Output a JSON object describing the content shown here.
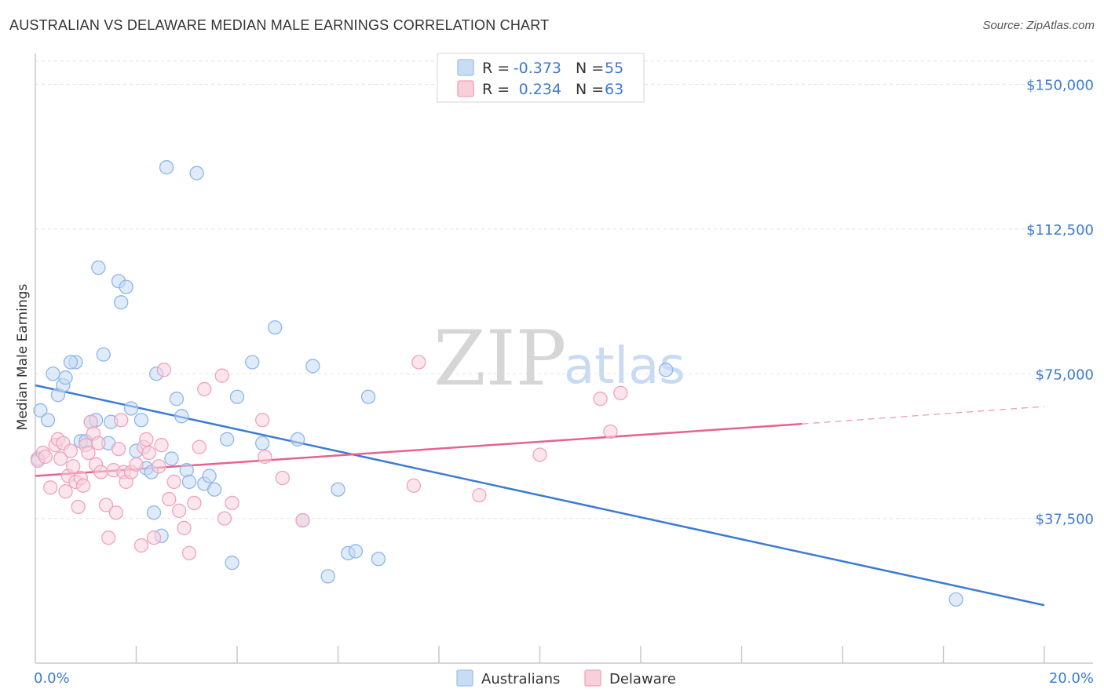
{
  "chart_data": {
    "type": "scatter",
    "title": "AUSTRALIAN VS DELAWARE MEDIAN MALE EARNINGS CORRELATION CHART",
    "source": "Source: ZipAtlas.com",
    "xlabel": "",
    "ylabel": "Median Male Earnings",
    "xlim": [
      0,
      20
    ],
    "ylim": [
      0,
      156000
    ],
    "x_tick_labels": [
      "0.0%",
      "20.0%"
    ],
    "y_ticks": [
      {
        "value": 37500,
        "label": "$37,500"
      },
      {
        "value": 75000,
        "label": "$75,000"
      },
      {
        "value": 112500,
        "label": "$112,500"
      },
      {
        "value": 150000,
        "label": "$150,000"
      }
    ],
    "watermark": {
      "part1": "ZIP",
      "part2": "atlas"
    },
    "legend": {
      "r_label": "R =",
      "n_label": "N =",
      "rows": [
        {
          "r": "-0.373",
          "n": "55",
          "color": "#9dc1ec",
          "fill": "#c7dcf5"
        },
        {
          "r": "0.234",
          "n": "63",
          "color": "#f2a0b8",
          "fill": "#f9cfdc"
        }
      ]
    },
    "series": [
      {
        "name": "Australians",
        "color": "#3d7bd3",
        "point_stroke": "#8fb6e8",
        "point_fill": "#c5daf4",
        "trend": {
          "x0": 0,
          "y0": 72000,
          "x1": 20,
          "y1": 15000
        },
        "points": [
          [
            0.1,
            65500
          ],
          [
            0.25,
            63000
          ],
          [
            0.35,
            75000
          ],
          [
            0.45,
            69500
          ],
          [
            0.55,
            72000
          ],
          [
            0.6,
            74000
          ],
          [
            0.8,
            78000
          ],
          [
            0.9,
            57500
          ],
          [
            1.0,
            57500
          ],
          [
            1.1,
            62500
          ],
          [
            1.2,
            63000
          ],
          [
            1.25,
            102500
          ],
          [
            1.35,
            80000
          ],
          [
            1.45,
            57000
          ],
          [
            1.5,
            62500
          ],
          [
            1.65,
            99000
          ],
          [
            1.7,
            93500
          ],
          [
            1.8,
            97500
          ],
          [
            1.9,
            66000
          ],
          [
            2.0,
            55000
          ],
          [
            2.1,
            63000
          ],
          [
            2.2,
            50500
          ],
          [
            2.3,
            49500
          ],
          [
            2.35,
            39000
          ],
          [
            2.4,
            75000
          ],
          [
            2.5,
            33000
          ],
          [
            2.6,
            128500
          ],
          [
            2.7,
            53000
          ],
          [
            2.8,
            68500
          ],
          [
            2.9,
            64000
          ],
          [
            3.0,
            50000
          ],
          [
            3.05,
            47000
          ],
          [
            3.2,
            127000
          ],
          [
            3.35,
            46500
          ],
          [
            3.45,
            48500
          ],
          [
            3.55,
            45000
          ],
          [
            3.8,
            58000
          ],
          [
            3.9,
            26000
          ],
          [
            4.0,
            69000
          ],
          [
            4.3,
            78000
          ],
          [
            4.5,
            57000
          ],
          [
            4.75,
            87000
          ],
          [
            5.2,
            58000
          ],
          [
            5.3,
            37000
          ],
          [
            5.5,
            77000
          ],
          [
            5.8,
            22500
          ],
          [
            6.0,
            45000
          ],
          [
            6.2,
            28500
          ],
          [
            6.35,
            29000
          ],
          [
            6.6,
            69000
          ],
          [
            6.8,
            27000
          ],
          [
            12.5,
            76000
          ],
          [
            18.25,
            16500
          ],
          [
            0.05,
            53000
          ],
          [
            0.7,
            78000
          ]
        ]
      },
      {
        "name": "Delaware",
        "color": "#e5638f",
        "point_stroke": "#f0a3bb",
        "point_fill": "#f8d2de",
        "trend": {
          "x0": 0,
          "y0": 48500,
          "x1": 15.2,
          "y1": 62000
        },
        "trend_dashed": {
          "x0": 15.2,
          "y0": 62000,
          "x1": 20,
          "y1": 66500
        },
        "points": [
          [
            0.05,
            52500
          ],
          [
            0.15,
            54500
          ],
          [
            0.2,
            53500
          ],
          [
            0.3,
            45500
          ],
          [
            0.4,
            56500
          ],
          [
            0.45,
            58000
          ],
          [
            0.5,
            53000
          ],
          [
            0.55,
            57000
          ],
          [
            0.6,
            44500
          ],
          [
            0.65,
            48500
          ],
          [
            0.7,
            55000
          ],
          [
            0.75,
            51000
          ],
          [
            0.8,
            47000
          ],
          [
            0.85,
            40500
          ],
          [
            0.9,
            48000
          ],
          [
            0.95,
            46000
          ],
          [
            1.0,
            56500
          ],
          [
            1.05,
            54500
          ],
          [
            1.1,
            62500
          ],
          [
            1.15,
            59500
          ],
          [
            1.2,
            51500
          ],
          [
            1.25,
            57000
          ],
          [
            1.3,
            49500
          ],
          [
            1.4,
            41000
          ],
          [
            1.45,
            32500
          ],
          [
            1.55,
            50000
          ],
          [
            1.6,
            39000
          ],
          [
            1.65,
            55500
          ],
          [
            1.7,
            63000
          ],
          [
            1.75,
            49500
          ],
          [
            1.8,
            47000
          ],
          [
            1.9,
            49500
          ],
          [
            2.0,
            51500
          ],
          [
            2.1,
            30500
          ],
          [
            2.15,
            56000
          ],
          [
            2.2,
            58000
          ],
          [
            2.25,
            54500
          ],
          [
            2.35,
            32500
          ],
          [
            2.45,
            51000
          ],
          [
            2.5,
            56500
          ],
          [
            2.55,
            76000
          ],
          [
            2.65,
            42500
          ],
          [
            2.75,
            47000
          ],
          [
            2.85,
            39500
          ],
          [
            2.95,
            35000
          ],
          [
            3.05,
            28500
          ],
          [
            3.15,
            41500
          ],
          [
            3.25,
            56000
          ],
          [
            3.35,
            71000
          ],
          [
            3.7,
            74500
          ],
          [
            3.75,
            37500
          ],
          [
            3.9,
            41500
          ],
          [
            4.5,
            63000
          ],
          [
            4.55,
            53500
          ],
          [
            4.9,
            48000
          ],
          [
            5.3,
            37000
          ],
          [
            7.5,
            46000
          ],
          [
            7.6,
            78000
          ],
          [
            8.8,
            43500
          ],
          [
            10.0,
            54000
          ],
          [
            11.2,
            68500
          ],
          [
            11.4,
            60000
          ],
          [
            11.6,
            70000
          ]
        ]
      }
    ]
  }
}
